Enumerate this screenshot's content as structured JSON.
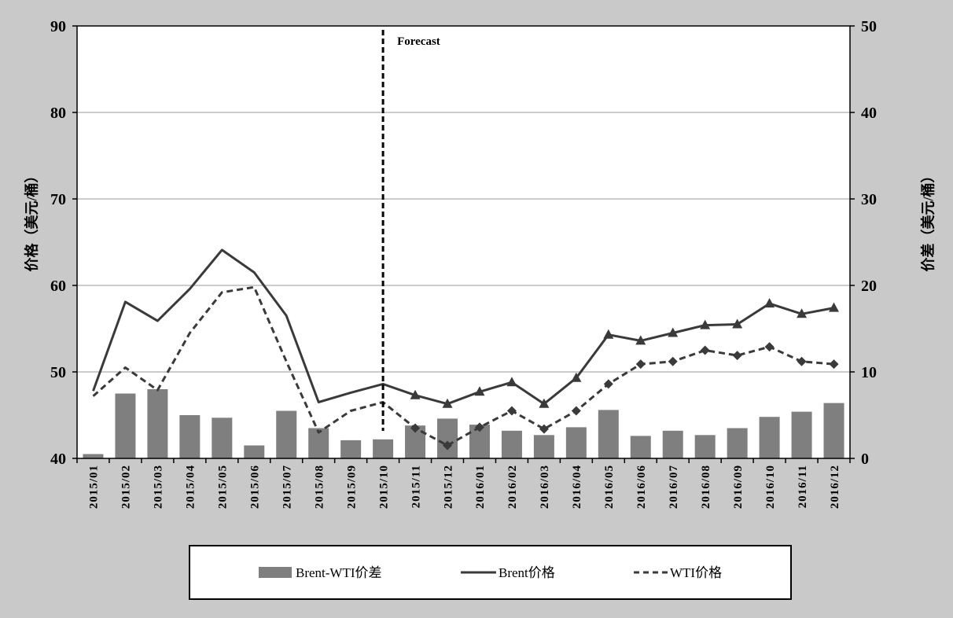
{
  "colors": {
    "page_background": "#c9c9c9",
    "plot_background": "#ffffff",
    "gridline": "#9a9a9a",
    "bar": "#7f7f7f",
    "line": "#3a3a3a",
    "forecast_line": "#000000",
    "legend_background": "#ffffff",
    "text": "#000000"
  },
  "chart_data": {
    "type": "bar",
    "categories": [
      "2015/01",
      "2015/02",
      "2015/03",
      "2015/04",
      "2015/05",
      "2015/06",
      "2015/07",
      "2015/08",
      "2015/09",
      "2015/10",
      "2015/11",
      "2015/12",
      "2016/01",
      "2016/02",
      "2016/03",
      "2016/04",
      "2016/05",
      "2016/06",
      "2016/07",
      "2016/08",
      "2016/09",
      "2016/10",
      "2016/11",
      "2016/12"
    ],
    "series": [
      {
        "name": "Brent-WTI价差",
        "type": "bar",
        "axis": "right",
        "values": [
          0.5,
          7.5,
          8.0,
          5.0,
          4.7,
          1.5,
          5.5,
          3.5,
          2.1,
          2.2,
          3.8,
          4.6,
          3.9,
          3.2,
          2.7,
          3.6,
          5.6,
          2.6,
          3.2,
          2.7,
          3.5,
          4.8,
          5.4,
          6.4
        ]
      },
      {
        "name": "Brent价格",
        "type": "line",
        "axis": "left",
        "style": "solid",
        "marker": "triangle",
        "values": [
          47.8,
          58.1,
          55.9,
          59.6,
          64.1,
          61.5,
          56.5,
          46.5,
          47.6,
          48.6,
          47.3,
          46.3,
          47.7,
          48.8,
          46.3,
          49.3,
          54.3,
          53.6,
          54.5,
          55.4,
          55.5,
          57.9,
          56.7,
          57.4
        ]
      },
      {
        "name": "WTI价格",
        "type": "line",
        "axis": "left",
        "style": "dashed",
        "marker": "diamond",
        "values": [
          47.2,
          50.5,
          47.9,
          54.5,
          59.2,
          59.8,
          51.2,
          43.0,
          45.5,
          46.5,
          43.5,
          41.5,
          43.6,
          45.5,
          43.4,
          45.5,
          48.6,
          50.9,
          51.2,
          52.5,
          51.9,
          52.9,
          51.2,
          50.9
        ]
      }
    ],
    "marker_from": "2015/11",
    "xlabel": "",
    "ylabel": "价格（美元/桶）",
    "y2label": "价差（美元/桶）",
    "ylim": [
      40,
      90
    ],
    "y2lim": [
      0,
      50
    ],
    "yticks": [
      40,
      50,
      60,
      70,
      80,
      90
    ],
    "y2ticks": [
      0,
      10,
      20,
      30,
      40,
      50
    ],
    "grid": true,
    "legend": "bottom",
    "annotation": {
      "text": "Forecast",
      "at": "2015/10",
      "style": "dashed vertical line"
    }
  }
}
